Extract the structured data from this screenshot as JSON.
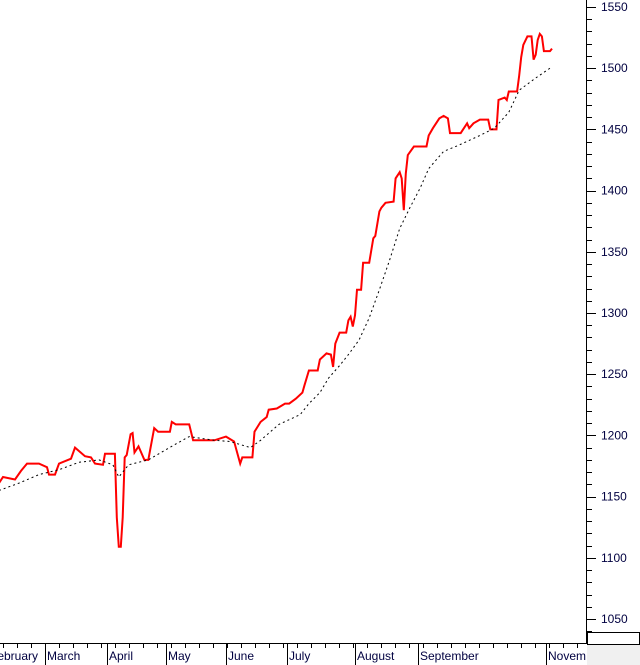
{
  "chart_data": {
    "type": "line",
    "title": "",
    "xlabel": "",
    "ylabel": "",
    "ylim": [
      1030,
      1560
    ],
    "y_ticks": [
      1050,
      1100,
      1150,
      1200,
      1250,
      1300,
      1350,
      1400,
      1450,
      1500,
      1550
    ],
    "y_tick_labels": [
      "1050",
      "1100",
      "1150",
      "1200",
      "1250",
      "1300",
      "1350",
      "1400",
      "1450",
      "1500",
      "1550"
    ],
    "y_axis_side": "right",
    "x_tick_labels": [
      "February",
      "March",
      "April",
      "May",
      "June",
      "July",
      "August",
      "September",
      "Novem"
    ],
    "x_tick_months": [
      "02",
      "03",
      "04",
      "05",
      "06",
      "07",
      "08",
      "09",
      "11"
    ],
    "grid": false,
    "legend": "none",
    "colors": {
      "price": "#ff0000",
      "average": "#000000",
      "axis_text": "#000040"
    },
    "series": [
      {
        "style": "solid",
        "x": [
          "02-06",
          "02-08",
          "02-14",
          "02-17",
          "02-20",
          "02-26",
          "03-02",
          "03-03",
          "03-06",
          "03-08",
          "03-14",
          "03-16",
          "03-21",
          "03-24",
          "03-26",
          "03-30",
          "03-31",
          "04-05",
          "04-06",
          "04-07",
          "04-08",
          "04-09",
          "04-10",
          "04-11",
          "04-13",
          "04-14",
          "04-15",
          "04-17",
          "04-20",
          "04-22",
          "04-25",
          "04-27",
          "05-03",
          "05-04",
          "05-06",
          "05-13",
          "05-15",
          "05-26",
          "06-01",
          "06-05",
          "06-08",
          "06-09",
          "06-14",
          "06-15",
          "06-18",
          "06-21",
          "06-22",
          "06-26",
          "06-30",
          "07-02",
          "07-05",
          "07-08",
          "07-09",
          "07-11",
          "07-15",
          "07-16",
          "07-19",
          "07-21",
          "07-22",
          "07-23",
          "07-25",
          "07-28",
          "07-29",
          "07-30",
          "07-31",
          "08-01",
          "08-02",
          "08-04",
          "08-05",
          "08-08",
          "08-10",
          "08-11",
          "08-13",
          "08-14",
          "08-16",
          "08-20",
          "08-21",
          "08-23",
          "08-24",
          "08-25",
          "08-26",
          "08-27",
          "08-30",
          "09-05",
          "09-06",
          "09-08",
          "09-11",
          "09-13",
          "09-15",
          "09-16",
          "09-21",
          "09-24",
          "09-25",
          "09-27",
          "09-30",
          "10-04",
          "10-05",
          "10-08",
          "10-09",
          "10-12",
          "10-13",
          "10-14",
          "10-18",
          "10-19",
          "10-20",
          "10-21",
          "10-23",
          "10-25",
          "10-26",
          "10-27",
          "10-28",
          "10-29",
          "10-30",
          "10-31",
          "11-03",
          "11-04"
        ],
        "values": [
          1161,
          1166,
          1164,
          1171,
          1177,
          1177,
          1174,
          1168,
          1168,
          1177,
          1181,
          1190,
          1183,
          1182,
          1177,
          1176,
          1185,
          1185,
          1133,
          1109,
          1109,
          1133,
          1182,
          1184,
          1201,
          1202,
          1186,
          1191,
          1180,
          1180,
          1206,
          1203,
          1203,
          1211,
          1209,
          1209,
          1196,
          1196,
          1199,
          1195,
          1177,
          1182,
          1182,
          1203,
          1211,
          1215,
          1221,
          1222,
          1226,
          1226,
          1230,
          1235,
          1241,
          1253,
          1253,
          1262,
          1267,
          1266,
          1256,
          1275,
          1284,
          1284,
          1294,
          1297,
          1289,
          1298,
          1319,
          1319,
          1341,
          1341,
          1361,
          1363,
          1383,
          1386,
          1390,
          1391,
          1410,
          1415,
          1410,
          1384,
          1414,
          1429,
          1436,
          1436,
          1445,
          1451,
          1459,
          1461,
          1459,
          1447,
          1447,
          1455,
          1451,
          1455,
          1458,
          1458,
          1450,
          1450,
          1474,
          1476,
          1474,
          1481,
          1481,
          1494,
          1509,
          1519,
          1526,
          1526,
          1507,
          1511,
          1523,
          1528,
          1526,
          1514,
          1514,
          1516
        ]
      },
      {
        "style": "dotted",
        "x": [
          "02-06",
          "02-16",
          "02-26",
          "03-08",
          "03-18",
          "03-28",
          "04-04",
          "04-07",
          "04-12",
          "04-22",
          "05-05",
          "05-13",
          "05-26",
          "06-03",
          "06-13",
          "06-18",
          "06-27",
          "07-07",
          "07-11",
          "07-16",
          "07-20",
          "07-25",
          "07-29",
          "08-03",
          "08-08",
          "08-13",
          "08-18",
          "08-23",
          "08-28",
          "09-02",
          "09-06",
          "09-13",
          "09-20",
          "09-30",
          "10-07",
          "10-14",
          "10-19",
          "10-27",
          "11-03"
        ],
        "values": [
          1155,
          1161,
          1168,
          1172,
          1178,
          1180,
          1176,
          1166,
          1176,
          1180,
          1192,
          1199,
          1196,
          1195,
          1190,
          1196,
          1209,
          1217,
          1226,
          1235,
          1247,
          1257,
          1266,
          1278,
          1296,
          1319,
          1343,
          1369,
          1386,
          1402,
          1418,
          1432,
          1437,
          1445,
          1451,
          1464,
          1482,
          1492,
          1500
        ]
      }
    ]
  }
}
